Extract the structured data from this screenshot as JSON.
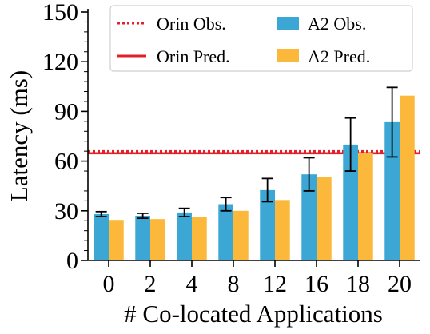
{
  "chart_data": {
    "type": "bar",
    "xlabel": "# Co-located Applications",
    "ylabel": "Latency (ms)",
    "categories": [
      "0",
      "2",
      "4",
      "8",
      "12",
      "16",
      "18",
      "20"
    ],
    "ylim": [
      0,
      150
    ],
    "yticks": [
      "0",
      "30",
      "60",
      "90",
      "120",
      "150"
    ],
    "series": [
      {
        "name": "A2 Obs.",
        "color": "#3ca7d4",
        "values": [
          28,
          27,
          29,
          34,
          42.5,
          52,
          70,
          83.5
        ],
        "error": [
          1.5,
          1.5,
          2.5,
          4,
          7,
          10,
          16,
          21
        ]
      },
      {
        "name": "A2 Pred.",
        "color": "#fbb83a",
        "values": [
          24.5,
          25,
          26.5,
          30,
          36.5,
          50.5,
          65,
          99.5
        ]
      }
    ],
    "reference_lines": [
      {
        "name": "Orin Obs.",
        "value": 66,
        "style": "dotted",
        "color": "#e0202a"
      },
      {
        "name": "Orin Pred.",
        "value": 64.7,
        "style": "solid",
        "color": "#e0202a"
      }
    ],
    "legend_position": "top-right",
    "grid": false
  }
}
